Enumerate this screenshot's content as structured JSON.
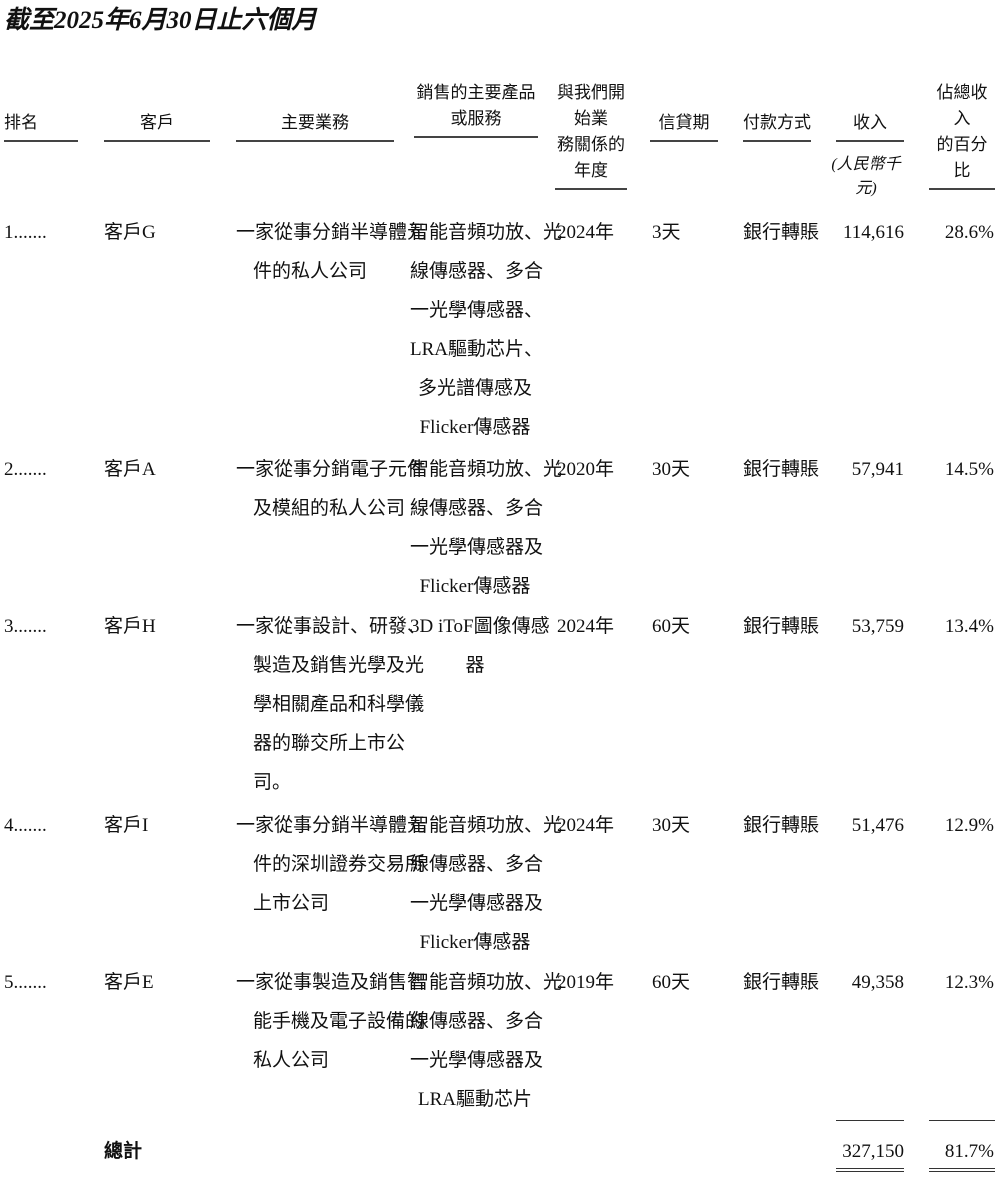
{
  "title": "截至2025年6月30日止六個月",
  "headers": {
    "rank": "排名",
    "customer": "客戶",
    "business": "主要業務",
    "products_1": "銷售的主要產品",
    "products_2": "或服務",
    "year_1": "與我們開始業",
    "year_2": "務關係的年度",
    "credit": "信貸期",
    "payment": "付款方式",
    "revenue": "收入",
    "pct_1": "佔總收入",
    "pct_2": "的百分比",
    "revenue_unit": "(人民幣千元)"
  },
  "rows": [
    {
      "rank": "1.......",
      "customer": "客戶G",
      "business": [
        "一家從事分銷半導體元",
        "件的私人公司"
      ],
      "products": [
        "智能音頻功放、光",
        "線傳感器、多合",
        "一光學傳感器、",
        "LRA驅動芯片、",
        "多光譜傳感及",
        "Flicker傳感器"
      ],
      "year": "2024年",
      "credit": "3天",
      "payment": "銀行轉賬",
      "revenue": "114,616",
      "pct": "28.6%"
    },
    {
      "rank": "2.......",
      "customer": "客戶A",
      "business": [
        "一家從事分銷電子元件",
        "及模組的私人公司"
      ],
      "products": [
        "智能音頻功放、光",
        "線傳感器、多合",
        "一光學傳感器及",
        "Flicker傳感器"
      ],
      "year": "2020年",
      "credit": "30天",
      "payment": "銀行轉賬",
      "revenue": "57,941",
      "pct": "14.5%"
    },
    {
      "rank": "3.......",
      "customer": "客戶H",
      "business": [
        "一家從事設計、研發、",
        "製造及銷售光學及光",
        "學相關產品和科學儀",
        "器的聯交所上市公",
        "司。"
      ],
      "products": [
        "3D iToF圖像傳感",
        "器"
      ],
      "year": "2024年",
      "credit": "60天",
      "payment": "銀行轉賬",
      "revenue": "53,759",
      "pct": "13.4%"
    },
    {
      "rank": "4.......",
      "customer": "客戶I",
      "business": [
        "一家從事分銷半導體元",
        "件的深圳證券交易所",
        "上市公司"
      ],
      "products": [
        "智能音頻功放、光",
        "線傳感器、多合",
        "一光學傳感器及",
        "Flicker傳感器"
      ],
      "year": "2024年",
      "credit": "30天",
      "payment": "銀行轉賬",
      "revenue": "51,476",
      "pct": "12.9%"
    },
    {
      "rank": "5.......",
      "customer": "客戶E",
      "business": [
        "一家從事製造及銷售智",
        "能手機及電子設備的",
        "私人公司"
      ],
      "products": [
        "智能音頻功放、光",
        "線傳感器、多合",
        "一光學傳感器及",
        "LRA驅動芯片"
      ],
      "year": "2019年",
      "credit": "60天",
      "payment": "銀行轉賬",
      "revenue": "49,358",
      "pct": "12.3%"
    }
  ],
  "total": {
    "label": "總計",
    "revenue": "327,150",
    "pct": "81.7%"
  }
}
